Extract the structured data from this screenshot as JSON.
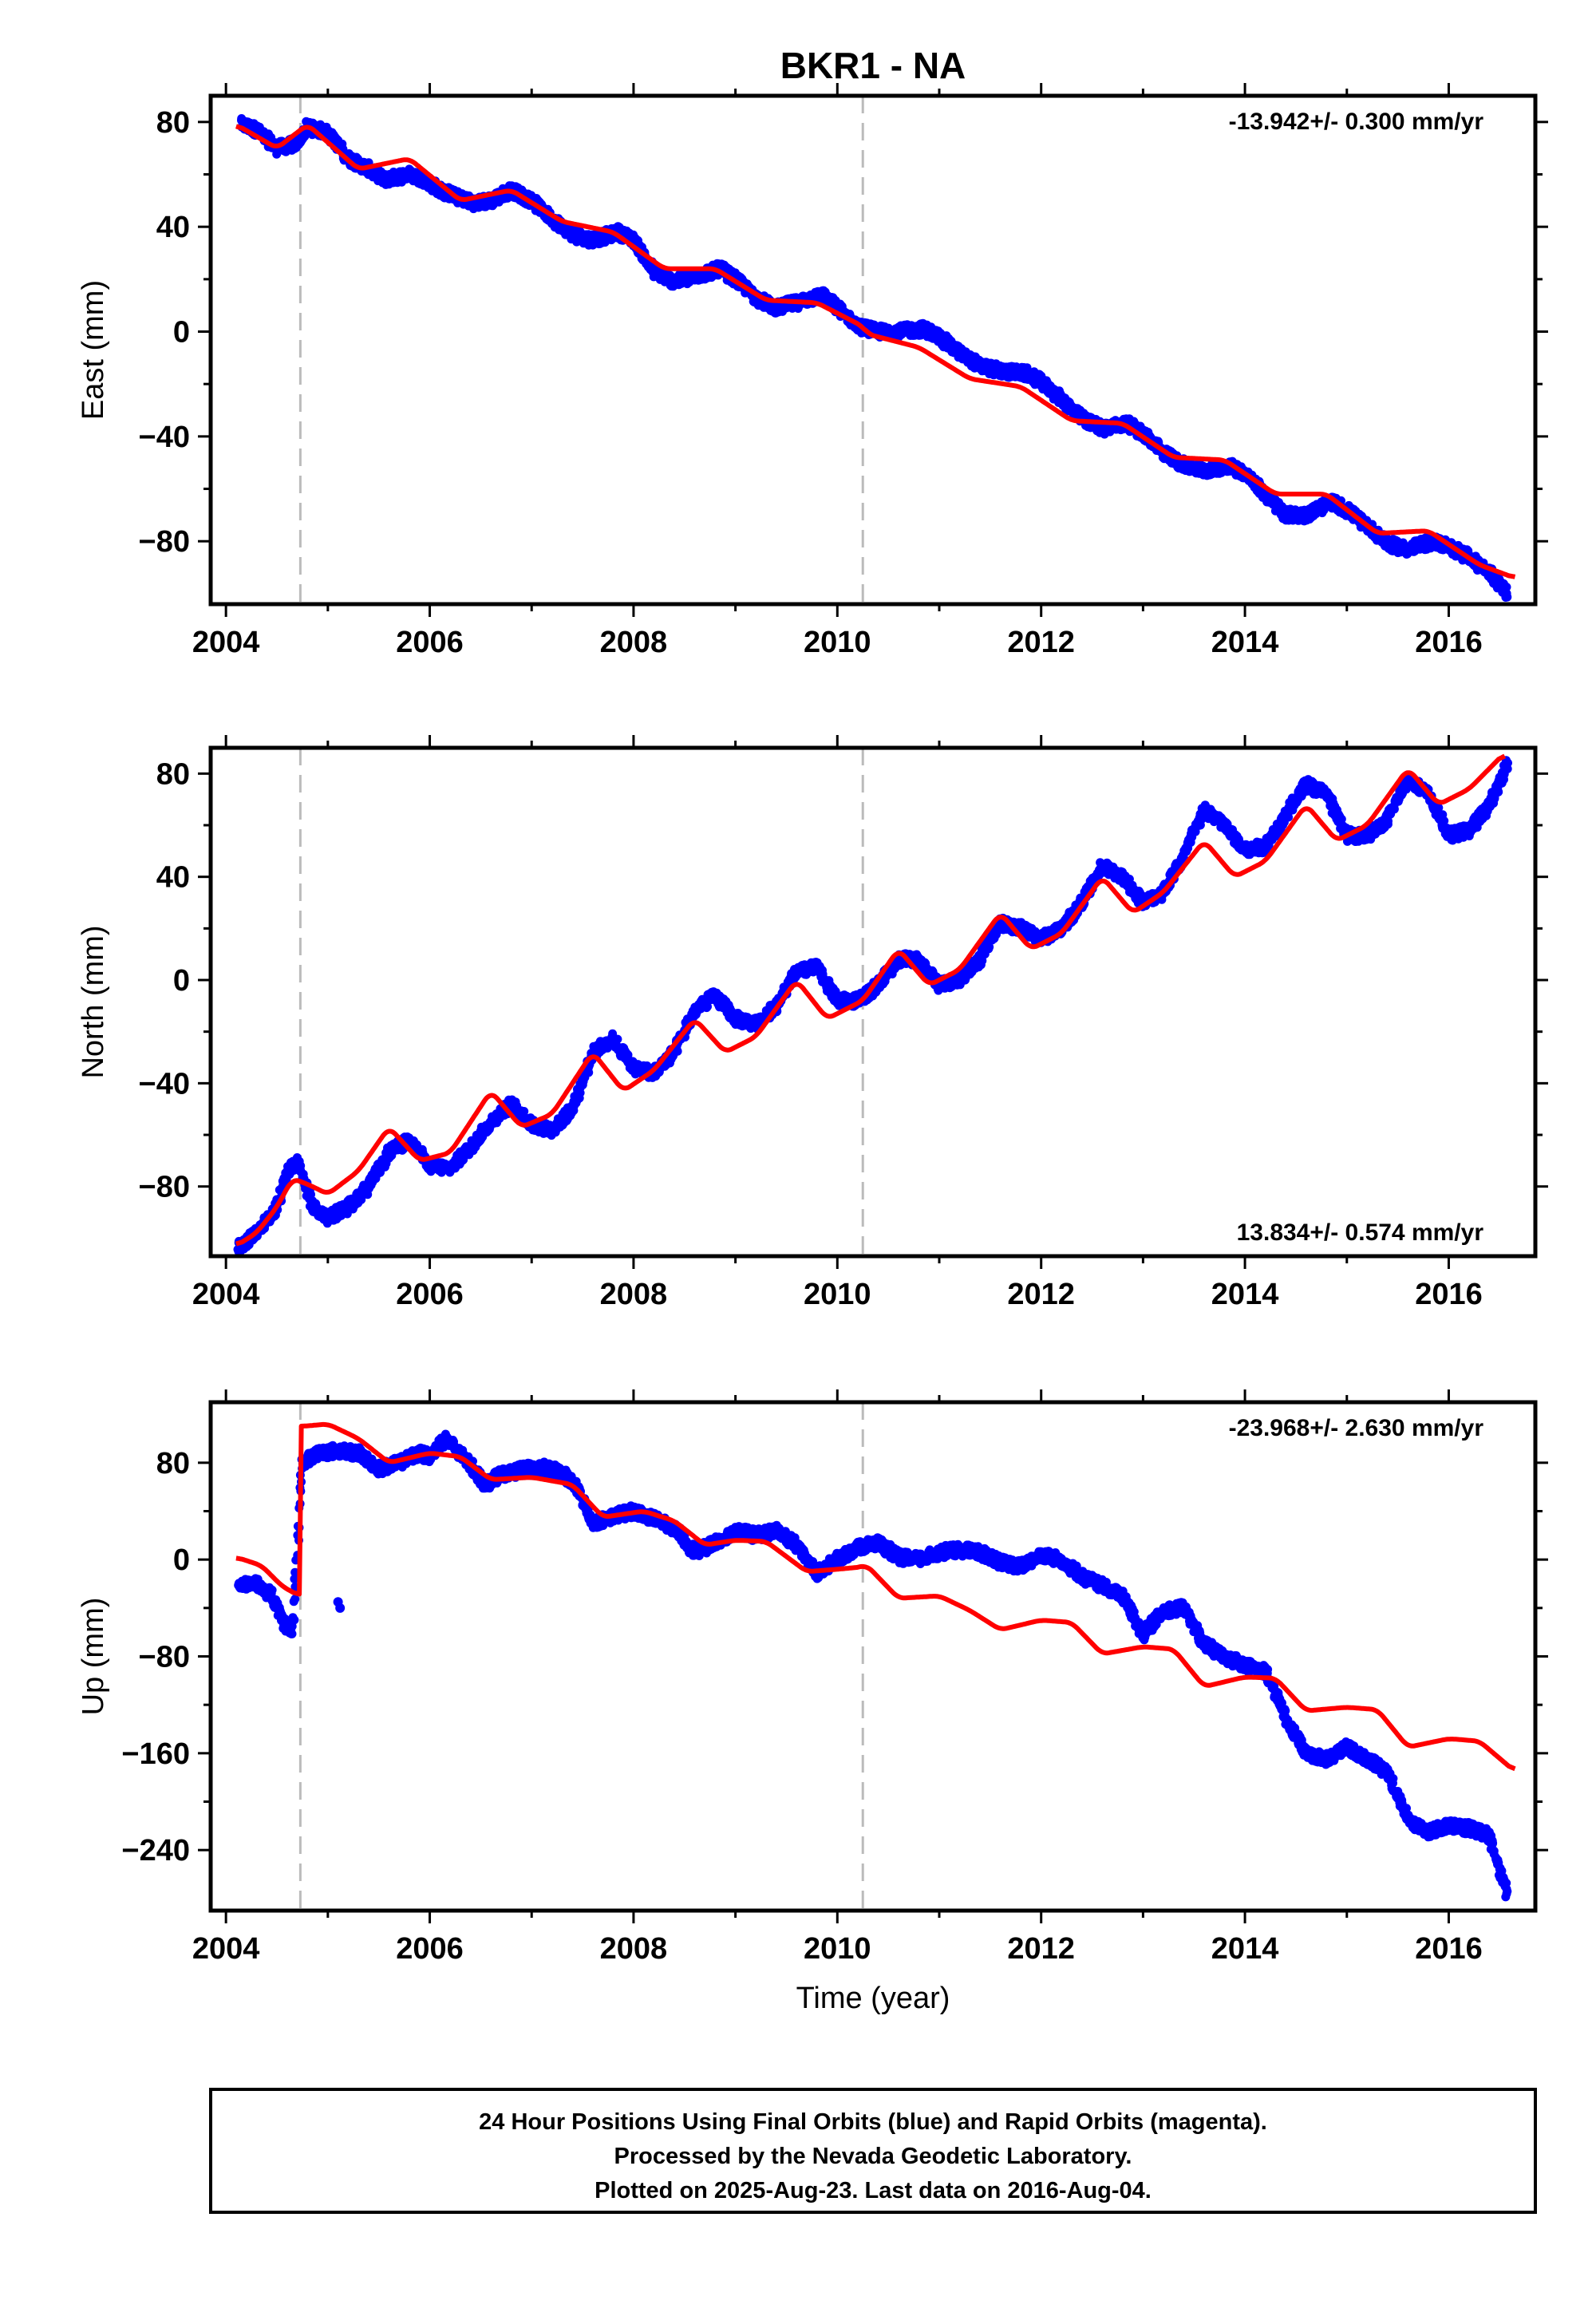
{
  "title": "BKR1 - NA",
  "xlabel": "Time (year)",
  "colors": {
    "final_orbits": "#0000ff",
    "model": "#ff0000",
    "event_line": "#bbbbbb",
    "frame": "#000000"
  },
  "footer": {
    "line1": "24 Hour Positions Using Final Orbits (blue) and Rapid Orbits (magenta).",
    "line2": "Processed by the Nevada Geodetic Laboratory.",
    "line3": "Plotted on 2025-Aug-23. Last data on 2016-Aug-04."
  },
  "chart_data": [
    {
      "type": "scatter",
      "component": "east",
      "ylabel": "East (mm)",
      "rate": "-13.942+/- 0.300 mm/yr",
      "rate_position": "top-right",
      "xlim": [
        2003.85,
        2016.85
      ],
      "ylim": [
        -104,
        90
      ],
      "xticks": [
        2004,
        2006,
        2008,
        2010,
        2012,
        2014,
        2016
      ],
      "yticks": [
        80,
        40,
        0,
        -40,
        -80
      ],
      "ytick_labels": [
        "80",
        "40",
        "0",
        "−40",
        "−80"
      ],
      "event_lines": [
        2004.73,
        2010.25
      ],
      "series": [
        {
          "role": "observations",
          "x": [
            2004.15,
            2004.3,
            2004.5,
            2004.7,
            2004.8,
            2005.0,
            2005.2,
            2005.4,
            2005.55,
            2005.8,
            2005.95,
            2006.1,
            2006.3,
            2006.45,
            2006.6,
            2006.8,
            2007.0,
            2007.2,
            2007.4,
            2007.6,
            2007.85,
            2008.0,
            2008.2,
            2008.4,
            2008.6,
            2008.85,
            2009.0,
            2009.2,
            2009.4,
            2009.6,
            2009.85,
            2010.0,
            2010.2,
            2010.4,
            2010.6,
            2010.85,
            2011.0,
            2011.2,
            2011.4,
            2011.6,
            2011.85,
            2012.0,
            2012.2,
            2012.4,
            2012.6,
            2012.85,
            2013.0,
            2013.2,
            2013.4,
            2013.6,
            2013.85,
            2014.0,
            2014.2,
            2014.4,
            2014.6,
            2014.85,
            2015.0,
            2015.2,
            2015.4,
            2015.6,
            2015.85,
            2016.0,
            2016.2,
            2016.4,
            2016.58
          ],
          "y": [
            79,
            77,
            70,
            72,
            78,
            76,
            66,
            62,
            58,
            60,
            58,
            54,
            51,
            49,
            50,
            54,
            50,
            43,
            37,
            35,
            38,
            35,
            23,
            19,
            21,
            24,
            20,
            13,
            9,
            11,
            14,
            9,
            2,
            0,
            0,
            1,
            -2,
            -8,
            -13,
            -15,
            -16,
            -19,
            -26,
            -33,
            -37,
            -35,
            -39,
            -46,
            -51,
            -53,
            -51,
            -54,
            -62,
            -70,
            -70,
            -65,
            -68,
            -74,
            -81,
            -83,
            -80,
            -82,
            -86,
            -92,
            -100
          ]
        },
        {
          "role": "model",
          "x": [
            2004.1,
            2004.5,
            2004.8,
            2005.3,
            2005.8,
            2006.3,
            2006.8,
            2007.3,
            2007.8,
            2008.3,
            2008.8,
            2009.3,
            2009.8,
            2010.25,
            2010.3,
            2010.8,
            2011.3,
            2011.8,
            2012.3,
            2012.8,
            2013.3,
            2013.8,
            2014.3,
            2014.8,
            2015.3,
            2015.8,
            2016.3,
            2016.65
          ],
          "y": [
            79,
            70,
            79,
            62,
            66,
            50,
            54,
            42,
            38,
            24,
            24,
            12,
            11,
            2,
            -1,
            -6,
            -18,
            -21,
            -34,
            -35,
            -48,
            -49,
            -62,
            -62,
            -77,
            -76,
            -89,
            -94
          ]
        }
      ]
    },
    {
      "type": "scatter",
      "component": "north",
      "ylabel": "North (mm)",
      "rate": "13.834+/- 0.574 mm/yr",
      "rate_position": "bottom-right",
      "xlim": [
        2003.85,
        2016.85
      ],
      "ylim": [
        -107,
        90
      ],
      "xticks": [
        2004,
        2006,
        2008,
        2010,
        2012,
        2014,
        2016
      ],
      "yticks": [
        80,
        40,
        0,
        -40,
        -80
      ],
      "ytick_labels": [
        "80",
        "40",
        "0",
        "−40",
        "−80"
      ],
      "event_lines": [
        2004.73,
        2010.25
      ],
      "series": [
        {
          "role": "observations",
          "x": [
            2004.12,
            2004.3,
            2004.5,
            2004.6,
            2004.7,
            2004.85,
            2005.0,
            2005.2,
            2005.4,
            2005.6,
            2005.8,
            2006.0,
            2006.2,
            2006.4,
            2006.6,
            2006.8,
            2007.0,
            2007.2,
            2007.4,
            2007.6,
            2007.8,
            2008.0,
            2008.2,
            2008.4,
            2008.6,
            2008.8,
            2009.0,
            2009.2,
            2009.4,
            2009.6,
            2009.8,
            2010.0,
            2010.2,
            2010.4,
            2010.6,
            2010.8,
            2011.0,
            2011.2,
            2011.4,
            2011.6,
            2011.8,
            2012.0,
            2012.2,
            2012.4,
            2012.6,
            2012.8,
            2013.0,
            2013.2,
            2013.4,
            2013.6,
            2013.8,
            2014.0,
            2014.2,
            2014.4,
            2014.6,
            2014.8,
            2015.0,
            2015.2,
            2015.4,
            2015.6,
            2015.8,
            2016.0,
            2016.2,
            2016.4,
            2016.58
          ],
          "y": [
            -104,
            -98,
            -88,
            -75,
            -70,
            -88,
            -92,
            -88,
            -80,
            -67,
            -62,
            -72,
            -73,
            -65,
            -55,
            -48,
            -56,
            -58,
            -50,
            -28,
            -23,
            -34,
            -36,
            -28,
            -12,
            -6,
            -15,
            -17,
            -10,
            3,
            5,
            -8,
            -8,
            -2,
            8,
            8,
            -2,
            0,
            8,
            22,
            20,
            16,
            20,
            30,
            44,
            40,
            30,
            34,
            48,
            66,
            60,
            50,
            52,
            64,
            76,
            72,
            56,
            56,
            62,
            78,
            72,
            56,
            58,
            68,
            84
          ]
        },
        {
          "role": "model",
          "x": [
            2004.1,
            2004.3,
            2004.5,
            2004.65,
            2004.73,
            2004.85,
            2005.0,
            2005.3,
            2005.6,
            2005.9,
            2006.2,
            2006.6,
            2006.9,
            2007.2,
            2007.6,
            2007.9,
            2008.2,
            2008.6,
            2008.9,
            2009.2,
            2009.6,
            2009.9,
            2010.25,
            2010.6,
            2010.9,
            2011.2,
            2011.6,
            2011.9,
            2012.2,
            2012.6,
            2012.9,
            2013.2,
            2013.6,
            2013.9,
            2014.2,
            2014.6,
            2014.9,
            2015.2,
            2015.6,
            2015.9,
            2016.2,
            2016.55
          ],
          "y": [
            -103,
            -98,
            -88,
            -77,
            -78,
            -80,
            -83,
            -74,
            -57,
            -70,
            -67,
            -43,
            -57,
            -52,
            -28,
            -43,
            -35,
            -15,
            -28,
            -22,
            0,
            -15,
            -8,
            12,
            -2,
            4,
            26,
            12,
            18,
            40,
            26,
            34,
            54,
            40,
            46,
            68,
            54,
            60,
            82,
            68,
            74,
            88
          ]
        }
      ]
    },
    {
      "type": "scatter",
      "component": "up",
      "ylabel": "Up (mm)",
      "rate": "-23.968+/- 2.630 mm/yr",
      "rate_position": "top-right",
      "xlim": [
        2003.85,
        2016.85
      ],
      "ylim": [
        -290,
        130
      ],
      "xticks": [
        2004,
        2006,
        2008,
        2010,
        2012,
        2014,
        2016
      ],
      "yticks": [
        80,
        0,
        -80,
        -160,
        -240
      ],
      "ytick_labels": [
        "80",
        "0",
        "−80",
        "−160",
        "−240"
      ],
      "event_lines": [
        2004.73,
        2010.25
      ],
      "series": [
        {
          "role": "observations",
          "x": [
            2004.12,
            2004.3,
            2004.45,
            2004.55,
            2004.65,
            2004.75,
            2004.9,
            2005.1,
            2005.3,
            2005.5,
            2005.7,
            2005.9,
            2006.0,
            2006.15,
            2006.4,
            2006.55,
            2006.7,
            2006.9,
            2007.1,
            2007.3,
            2007.45,
            2007.6,
            2007.8,
            2008.0,
            2008.2,
            2008.4,
            2008.6,
            2008.8,
            2009.0,
            2009.2,
            2009.4,
            2009.6,
            2009.8,
            2010.0,
            2010.2,
            2010.4,
            2010.6,
            2010.8,
            2011.0,
            2011.2,
            2011.4,
            2011.6,
            2011.8,
            2012.0,
            2012.2,
            2012.4,
            2012.6,
            2012.8,
            2013.0,
            2013.2,
            2013.4,
            2013.6,
            2013.8,
            2014.0,
            2014.2,
            2014.4,
            2014.6,
            2014.8,
            2015.0,
            2015.2,
            2015.4,
            2015.6,
            2015.8,
            2016.0,
            2016.2,
            2016.4,
            2016.58
          ],
          "y": [
            -20,
            -20,
            -30,
            -50,
            -60,
            80,
            88,
            90,
            88,
            75,
            80,
            88,
            85,
            100,
            78,
            62,
            70,
            74,
            76,
            72,
            58,
            30,
            36,
            40,
            34,
            26,
            6,
            14,
            24,
            20,
            24,
            12,
            -12,
            0,
            10,
            14,
            2,
            0,
            6,
            8,
            6,
            -2,
            -6,
            4,
            0,
            -14,
            -22,
            -30,
            -62,
            -42,
            -40,
            -70,
            -80,
            -88,
            -92,
            -130,
            -160,
            -165,
            -155,
            -165,
            -175,
            -215,
            -225,
            -220,
            -222,
            -228,
            -278
          ]
        },
        {
          "role": "observations",
          "x": [
            2005.1,
            2005.12
          ],
          "y": [
            -35,
            -40
          ]
        },
        {
          "role": "model",
          "x": [
            2004.1,
            2004.35,
            2004.55,
            2004.72,
            2004.74,
            2005.0,
            2005.3,
            2005.6,
            2006.0,
            2006.3,
            2006.6,
            2007.0,
            2007.4,
            2007.7,
            2008.1,
            2008.4,
            2008.7,
            2009.0,
            2009.3,
            2009.7,
            2010.0,
            2010.25,
            2010.28,
            2010.6,
            2011.0,
            2011.3,
            2011.6,
            2012.0,
            2012.3,
            2012.6,
            2013.0,
            2013.3,
            2013.6,
            2014.0,
            2014.3,
            2014.6,
            2015.0,
            2015.3,
            2015.6,
            2016.0,
            2016.3,
            2016.65
          ],
          "y": [
            2,
            -5,
            -22,
            -30,
            110,
            112,
            100,
            80,
            88,
            85,
            66,
            68,
            62,
            35,
            40,
            32,
            12,
            16,
            15,
            -10,
            -8,
            -6,
            -4,
            -32,
            -30,
            -42,
            -58,
            -50,
            -52,
            -78,
            -72,
            -74,
            -105,
            -97,
            -98,
            -125,
            -122,
            -124,
            -155,
            -148,
            -150,
            -175
          ]
        }
      ]
    }
  ]
}
